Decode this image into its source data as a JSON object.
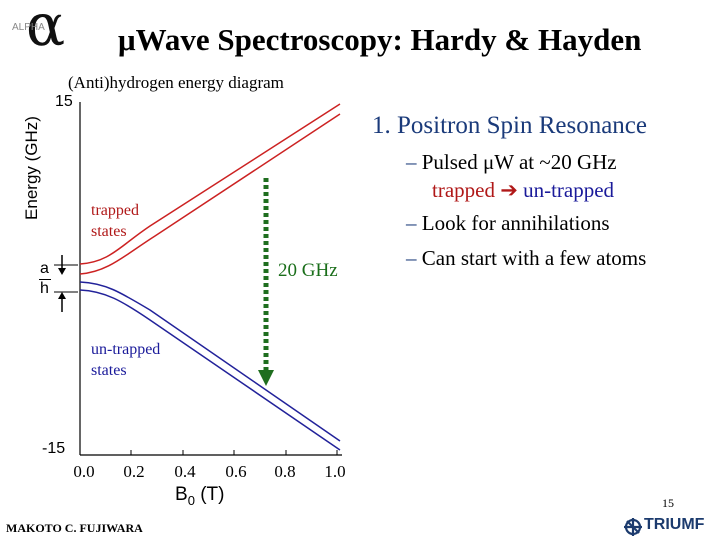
{
  "header": {
    "logo_text": "ALPHA",
    "logo_symbol": "α",
    "title": "μWave Spectroscopy: Hardy & Hayden"
  },
  "diagram": {
    "subtitle": "(Anti)hydrogen energy diagram",
    "ylabel": "Energy (GHz)",
    "y_tick_top": "15",
    "y_tick_bottom": "-15",
    "x_ticks": [
      "0.0",
      "0.2",
      "0.4",
      "0.6",
      "0.8",
      "1.0"
    ],
    "xlabel_main": "B",
    "xlabel_sub": "0",
    "xlabel_unit": " (T)",
    "trapped_label": "trapped states",
    "untrapped_label": "un-trapped states",
    "transition_label": "20 GHz",
    "frac_top": "a",
    "frac_bottom": "h",
    "colors": {
      "trapped": "#cc2222",
      "untrapped": "#22229a",
      "arrow": "#1f6e1f"
    }
  },
  "slide": {
    "section_title": "1. Positron Spin Resonance",
    "bullets": {
      "b1_dash": "–",
      "b1_text": " Pulsed μW at ~20 GHz",
      "b1_line2_a": "trapped ",
      "b1_line2_arrow": "➔",
      "b1_line2_b": " un-trapped",
      "b2_dash": "–",
      "b2_text": "Look for annihilations",
      "b3_dash": "–",
      "b3_text": "Can start with a few atoms"
    },
    "page_number": "15",
    "author": "MAKOTO C. FUJIWARA",
    "org": "TRIUMF"
  }
}
